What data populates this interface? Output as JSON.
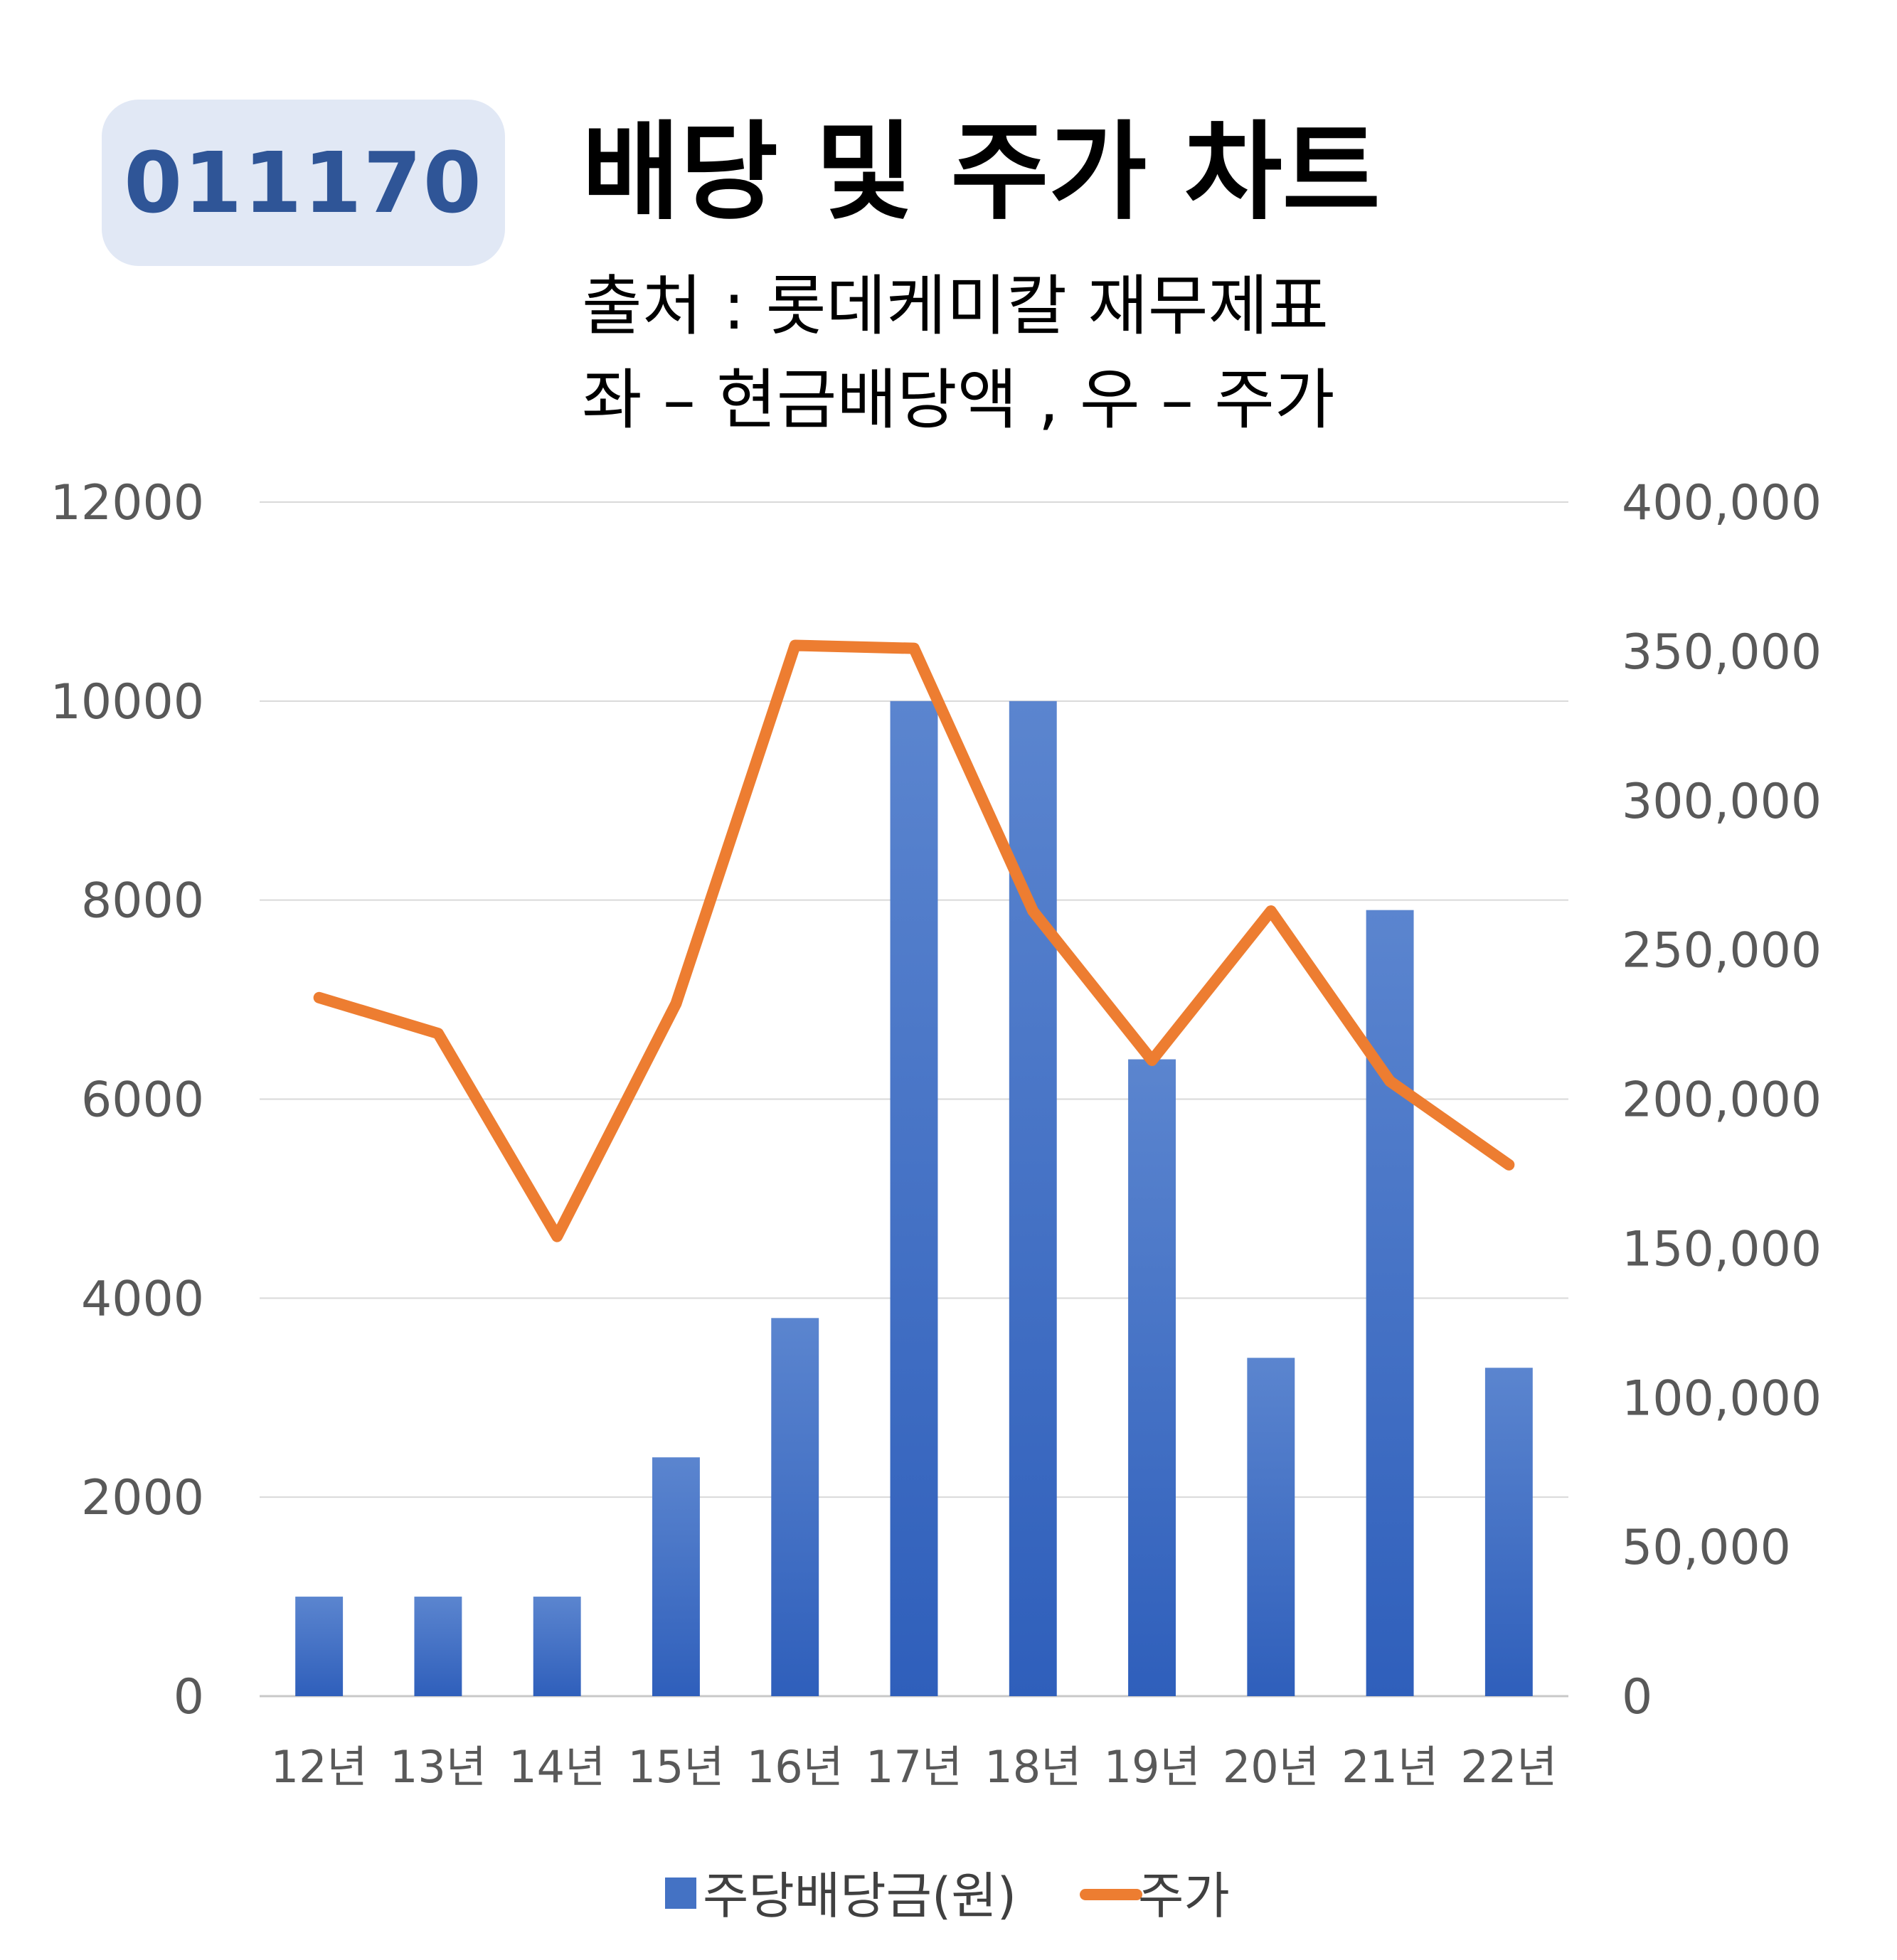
{
  "header": {
    "ticker": "011170",
    "title": "배당 및 주가 차트",
    "source_line": "출처 : 롯데케미칼 재무제표",
    "axes_note": "좌 – 현금배당액 , 우 – 주가"
  },
  "colors": {
    "bar": "#4472c4",
    "line": "#ed7d31",
    "badge_bg": "#e1e8f5",
    "badge_text": "#2f5597",
    "grid": "#d9d9d9"
  },
  "chart_data": {
    "type": "bar",
    "categories": [
      "12년",
      "13년",
      "14년",
      "15년",
      "16년",
      "17년",
      "18년",
      "19년",
      "20년",
      "21년",
      "22년"
    ],
    "series": [
      {
        "name": "주당배당금(원)",
        "type": "bar",
        "axis": "left",
        "values": [
          1000,
          1000,
          1000,
          2400,
          3800,
          10000,
          10000,
          6400,
          3400,
          7900,
          3300
        ]
      },
      {
        "name": "주가",
        "type": "line",
        "axis": "right",
        "values": [
          234000,
          222000,
          154000,
          232000,
          352000,
          351000,
          263000,
          213000,
          263000,
          206000,
          178000
        ]
      }
    ],
    "y_left": {
      "min": 0,
      "max": 12000,
      "ticks": [
        "12000",
        "10000",
        "8000",
        "6000",
        "4000",
        "2000",
        "0"
      ]
    },
    "y_right": {
      "min": 0,
      "max": 400000,
      "ticks": [
        "400,000",
        "350,000",
        "300,000",
        "250,000",
        "200,000",
        "150,000",
        "100,000",
        "50,000",
        "0"
      ]
    },
    "grid": true,
    "legend_position": "bottom"
  }
}
